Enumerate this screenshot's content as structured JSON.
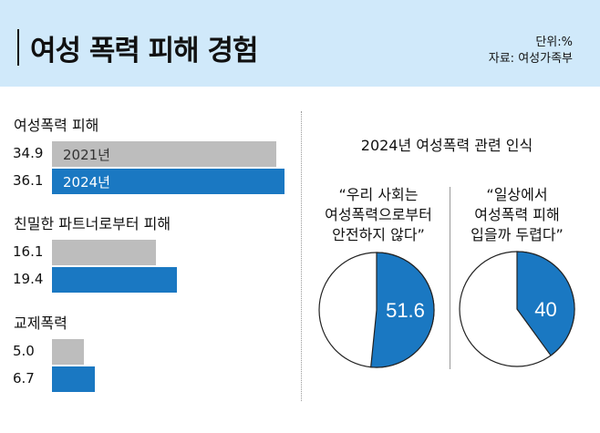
{
  "header": {
    "title": "여성 폭력 피해 경험",
    "unit": "단위:%",
    "source": "자료: 여성가족부"
  },
  "colors": {
    "2021": "#bdbdbd",
    "2024": "#1a78c2",
    "header_bg": "#d0e9fa"
  },
  "chart_data": [
    {
      "type": "bar",
      "orientation": "horizontal",
      "legend": [
        "2021년",
        "2024년"
      ],
      "groups": [
        {
          "label": "여성폭력 피해",
          "values": [
            34.9,
            36.1
          ],
          "value_labels": [
            "34.9",
            "36.1"
          ]
        },
        {
          "label": "친밀한 파트너로부터 피해",
          "values": [
            16.1,
            19.4
          ],
          "value_labels": [
            "16.1",
            "19.4"
          ]
        },
        {
          "label": "교제폭력",
          "values": [
            5.0,
            6.7
          ],
          "value_labels": [
            "5.0",
            "6.7"
          ]
        }
      ]
    },
    {
      "type": "pie",
      "title": "2024년 여성폭력 관련 인식",
      "pies": [
        {
          "question_lines": [
            "“우리 사회는",
            "여성폭력으로부터",
            "안전하지 않다”"
          ],
          "value": 51.6,
          "label": "51.6"
        },
        {
          "question_lines": [
            "“일상에서",
            "여성폭력 피해",
            "입을까 두렵다”"
          ],
          "value": 40,
          "label": "40"
        }
      ]
    }
  ]
}
